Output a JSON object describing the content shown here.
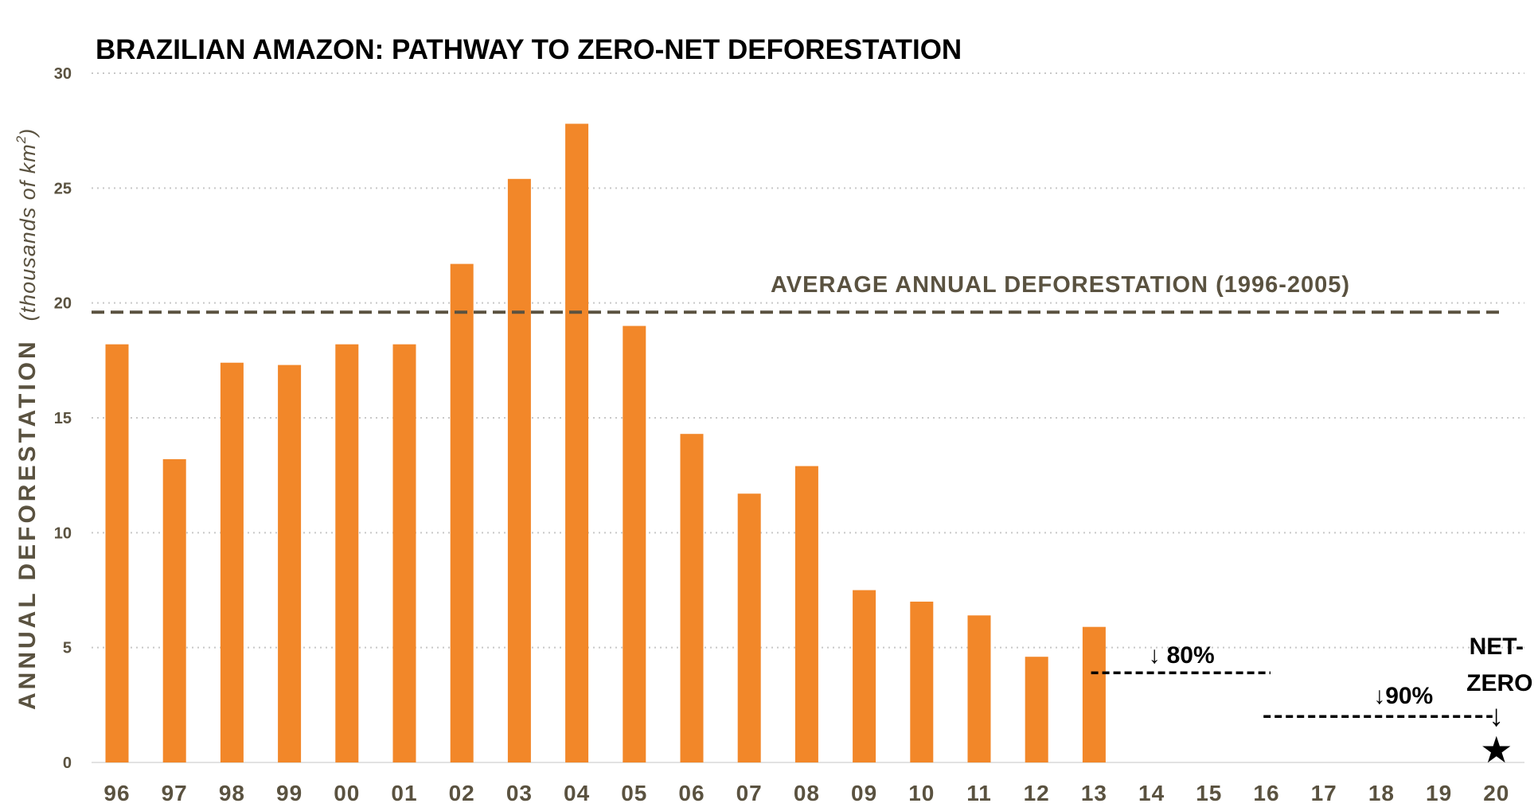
{
  "chart_data": {
    "type": "bar",
    "title": "BRAZILIAN AMAZON: PATHWAY TO ZERO-NET DEFORESTATION",
    "ylabel": "ANNUAL DEFORESTATION",
    "ylabel_units_prefix": "(thousands of km",
    "ylabel_units_sup": "2",
    "ylabel_units_suffix": ")",
    "ylim": [
      0,
      30
    ],
    "yticks": [
      "0",
      "5",
      "10",
      "15",
      "20",
      "25",
      "30"
    ],
    "grid": true,
    "categories": [
      "96",
      "97",
      "98",
      "99",
      "00",
      "01",
      "02",
      "03",
      "04",
      "05",
      "06",
      "07",
      "08",
      "09",
      "10",
      "11",
      "12",
      "13",
      "14",
      "15",
      "16",
      "17",
      "18",
      "19",
      "20"
    ],
    "values": [
      18.2,
      13.2,
      17.4,
      17.3,
      18.2,
      18.2,
      21.7,
      25.4,
      27.8,
      19.0,
      14.3,
      11.7,
      12.9,
      7.5,
      7.0,
      6.4,
      4.6,
      5.9,
      null,
      null,
      null,
      null,
      null,
      null,
      null
    ],
    "bar_color": "#f28729",
    "average_line": {
      "label": "AVERAGE ANNUAL DEFORESTATION (1996-2005)",
      "value": 19.6,
      "color": "#5a5240"
    },
    "targets": [
      {
        "label": "80%",
        "arrow": "↓",
        "value": 3.9,
        "from": "14",
        "to": "16"
      },
      {
        "label": "90%",
        "arrow": "↓",
        "value": 2.0,
        "from": "17",
        "to": "20"
      }
    ],
    "net_zero": {
      "label_line1": "NET-",
      "label_line2": "ZERO",
      "arrow": "↓",
      "star": "★",
      "category": "20",
      "value": 0
    },
    "text_color": "#5a5240",
    "grid_color": "#c8c8c8"
  }
}
